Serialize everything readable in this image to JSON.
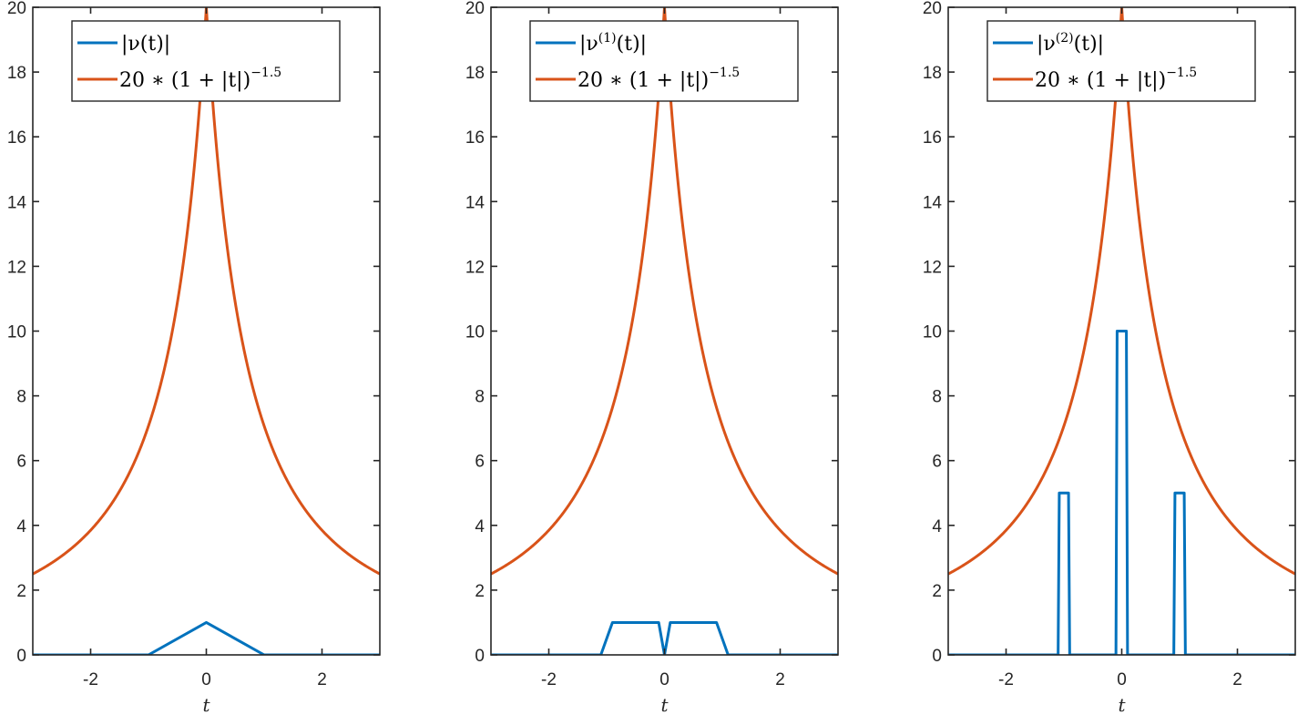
{
  "colors": {
    "series1": "#0072BD",
    "series2": "#D95319",
    "axis": "#262626"
  },
  "chart_data": [
    {
      "type": "line",
      "title": "",
      "xlabel": "t",
      "ylabel": "",
      "xlim": [
        -3,
        3
      ],
      "ylim": [
        0,
        20
      ],
      "xticks": [
        -2,
        0,
        2
      ],
      "yticks": [
        0,
        2,
        4,
        6,
        8,
        10,
        12,
        14,
        16,
        18,
        20
      ],
      "grid": false,
      "legend_position": "north",
      "series": [
        {
          "name": "|ν(t)|",
          "x": [
            -3,
            -1,
            0,
            1,
            3
          ],
          "y": [
            0,
            0,
            1,
            0,
            0
          ]
        },
        {
          "name": "20*(1+|t|)^-1.5",
          "formula": "20*(1+|t|)^-1.5",
          "x": [
            -3,
            -2,
            -1,
            -0.5,
            0,
            0.5,
            1,
            2,
            3
          ],
          "y": [
            2.5,
            3.85,
            7.07,
            10.89,
            20,
            10.89,
            7.07,
            3.85,
            2.5
          ]
        }
      ]
    },
    {
      "type": "line",
      "title": "",
      "xlabel": "t",
      "ylabel": "",
      "xlim": [
        -3,
        3
      ],
      "ylim": [
        0,
        20
      ],
      "xticks": [
        -2,
        0,
        2
      ],
      "yticks": [
        0,
        2,
        4,
        6,
        8,
        10,
        12,
        14,
        16,
        18,
        20
      ],
      "grid": false,
      "legend_position": "north",
      "series": [
        {
          "name": "|ν^(1)(t)|",
          "x": [
            -3,
            -1.1,
            -0.9,
            -0.1,
            0,
            0.1,
            0.9,
            1.1,
            3
          ],
          "y": [
            0,
            0,
            1,
            1,
            0,
            1,
            1,
            0,
            0
          ]
        },
        {
          "name": "20*(1+|t|)^-1.5",
          "formula": "20*(1+|t|)^-1.5",
          "x": [
            -3,
            -2,
            -1,
            -0.5,
            0,
            0.5,
            1,
            2,
            3
          ],
          "y": [
            2.5,
            3.85,
            7.07,
            10.89,
            20,
            10.89,
            7.07,
            3.85,
            2.5
          ]
        }
      ]
    },
    {
      "type": "line",
      "title": "",
      "xlabel": "t",
      "ylabel": "",
      "xlim": [
        -3,
        3
      ],
      "ylim": [
        0,
        20
      ],
      "xticks": [
        -2,
        0,
        2
      ],
      "yticks": [
        0,
        2,
        4,
        6,
        8,
        10,
        12,
        14,
        16,
        18,
        20
      ],
      "grid": false,
      "legend_position": "north",
      "series": [
        {
          "name": "|ν^(2)(t)|",
          "x": [
            -3,
            -1.1,
            -1.08,
            -0.92,
            -0.9,
            -0.1,
            -0.08,
            0.08,
            0.1,
            0.9,
            0.92,
            1.08,
            1.1,
            3
          ],
          "y": [
            0,
            0,
            5,
            5,
            0,
            0,
            10,
            10,
            0,
            0,
            5,
            5,
            0,
            0
          ]
        },
        {
          "name": "20*(1+|t|)^-1.5",
          "formula": "20*(1+|t|)^-1.5",
          "x": [
            -3,
            -2,
            -1,
            -0.5,
            0,
            0.5,
            1,
            2,
            3
          ],
          "y": [
            2.5,
            3.85,
            7.07,
            10.89,
            20,
            10.89,
            7.07,
            3.85,
            2.5
          ]
        }
      ]
    }
  ],
  "panels": [
    {
      "legend": {
        "entry1_main": "|ν(",
        "entry1_sup": "",
        "entry1_tail": "t)|",
        "entry2_main": "20 ∗ (1 + |t|)",
        "entry2_sup": "−1.5"
      }
    },
    {
      "legend": {
        "entry1_main": "|ν",
        "entry1_sup": "(1)",
        "entry1_tail": "(t)|",
        "entry2_main": "20 ∗ (1 + |t|)",
        "entry2_sup": "−1.5"
      }
    },
    {
      "legend": {
        "entry1_main": "|ν",
        "entry1_sup": "(2)",
        "entry1_tail": "(t)|",
        "entry2_main": "20 ∗ (1 + |t|)",
        "entry2_sup": "−1.5"
      }
    }
  ]
}
